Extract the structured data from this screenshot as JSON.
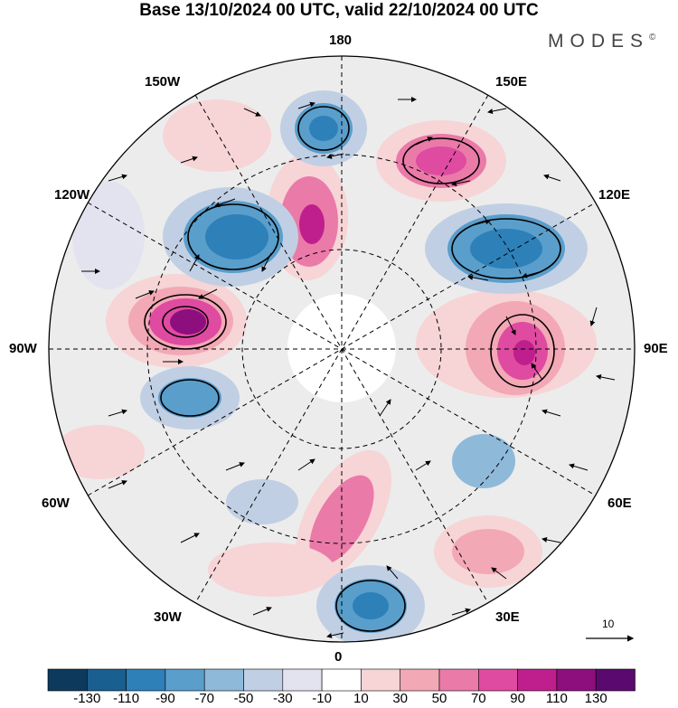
{
  "title": "Base 13/10/2024 00 UTC, valid 22/10/2024 00 UTC",
  "brand": "MODES",
  "brand_mark": "©",
  "longitude_labels": {
    "top": "180",
    "bottom": "0",
    "left": "90W",
    "right": "90E",
    "w150": "150W",
    "e150": "150E",
    "w120": "120W",
    "e120": "120E",
    "w60": "60W",
    "e60": "60E",
    "w30": "30W",
    "e30": "30E"
  },
  "vector_scale": {
    "label": "10"
  },
  "colorbar": {
    "colors": [
      "#0d3a5c",
      "#195f8f",
      "#2d80b8",
      "#5a9ecb",
      "#8fb9d9",
      "#c1cfe4",
      "#e3e3ef",
      "#ffffff",
      "#f7d4d6",
      "#f2a8b5",
      "#ea7aa8",
      "#df4ba1",
      "#bf1f8c",
      "#8c0f7d",
      "#5a0a6e"
    ],
    "labels": [
      "-130",
      "-110",
      "-90",
      "-70",
      "-50",
      "-30",
      "-10",
      "10",
      "30",
      "50",
      "70",
      "90",
      "110",
      "130"
    ]
  }
}
